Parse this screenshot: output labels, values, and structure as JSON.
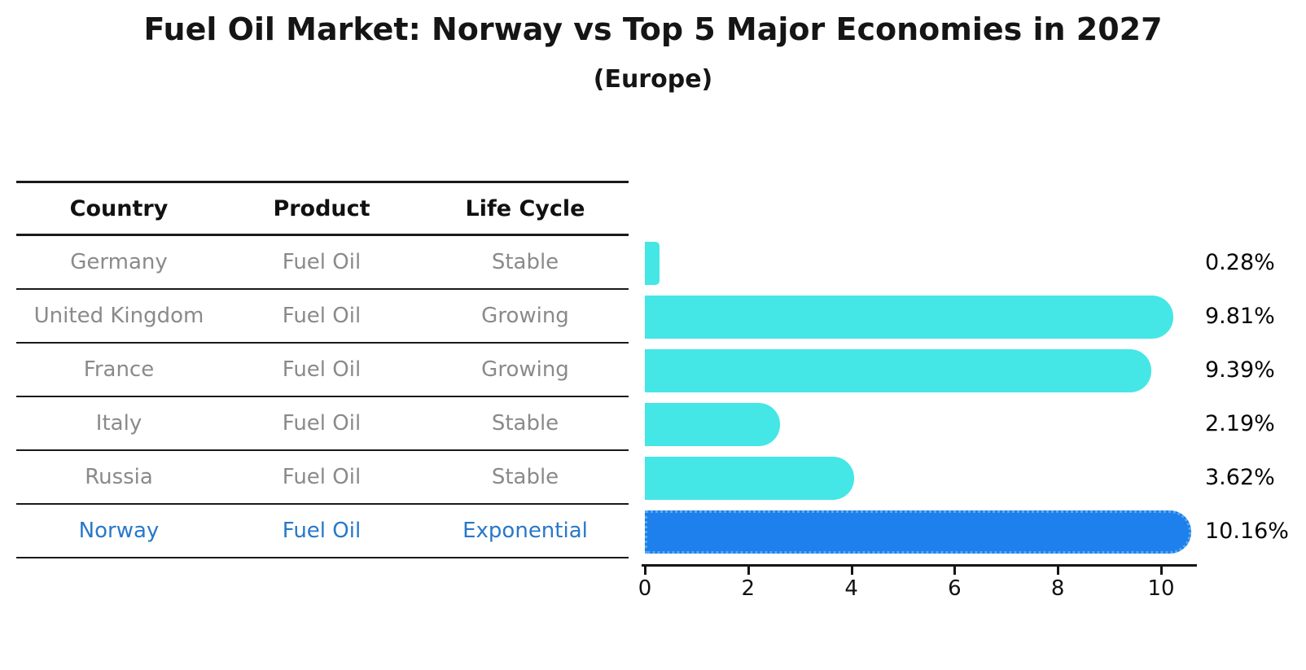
{
  "title": "Fuel Oil Market: Norway vs Top 5 Major Economies in 2027",
  "subtitle": "(Europe)",
  "table": {
    "headers": [
      "Country",
      "Product",
      "Life Cycle"
    ],
    "rows": [
      {
        "country": "Germany",
        "product": "Fuel Oil",
        "life_cycle": "Stable",
        "highlight": false
      },
      {
        "country": "United Kingdom",
        "product": "Fuel Oil",
        "life_cycle": "Growing",
        "highlight": false
      },
      {
        "country": "France",
        "product": "Fuel Oil",
        "life_cycle": "Growing",
        "highlight": false
      },
      {
        "country": "Italy",
        "product": "Fuel Oil",
        "life_cycle": "Stable",
        "highlight": false
      },
      {
        "country": "Russia",
        "product": "Fuel Oil",
        "life_cycle": "Stable",
        "highlight": false
      },
      {
        "country": "Norway",
        "product": "Fuel Oil",
        "life_cycle": "Exponential",
        "highlight": true
      }
    ]
  },
  "chart_data": {
    "type": "bar",
    "orientation": "horizontal",
    "categories": [
      "Germany",
      "United Kingdom",
      "France",
      "Italy",
      "Russia",
      "Norway"
    ],
    "values": [
      0.28,
      9.81,
      9.39,
      2.19,
      3.62,
      10.16
    ],
    "value_labels": [
      "0.28%",
      "9.81%",
      "9.39%",
      "2.19%",
      "3.62%",
      "10.16%"
    ],
    "x_ticks": [
      0,
      2,
      4,
      6,
      8,
      10
    ],
    "xlim": [
      0,
      10.7
    ],
    "grid": false,
    "legend": "none",
    "highlight_index": 5,
    "colors": {
      "bar": "#45E6E6",
      "highlight_bar": "#1E80EC",
      "highlight_text": "#2878C8",
      "row_text": "#8a8a8a",
      "axis": "#141414"
    }
  }
}
